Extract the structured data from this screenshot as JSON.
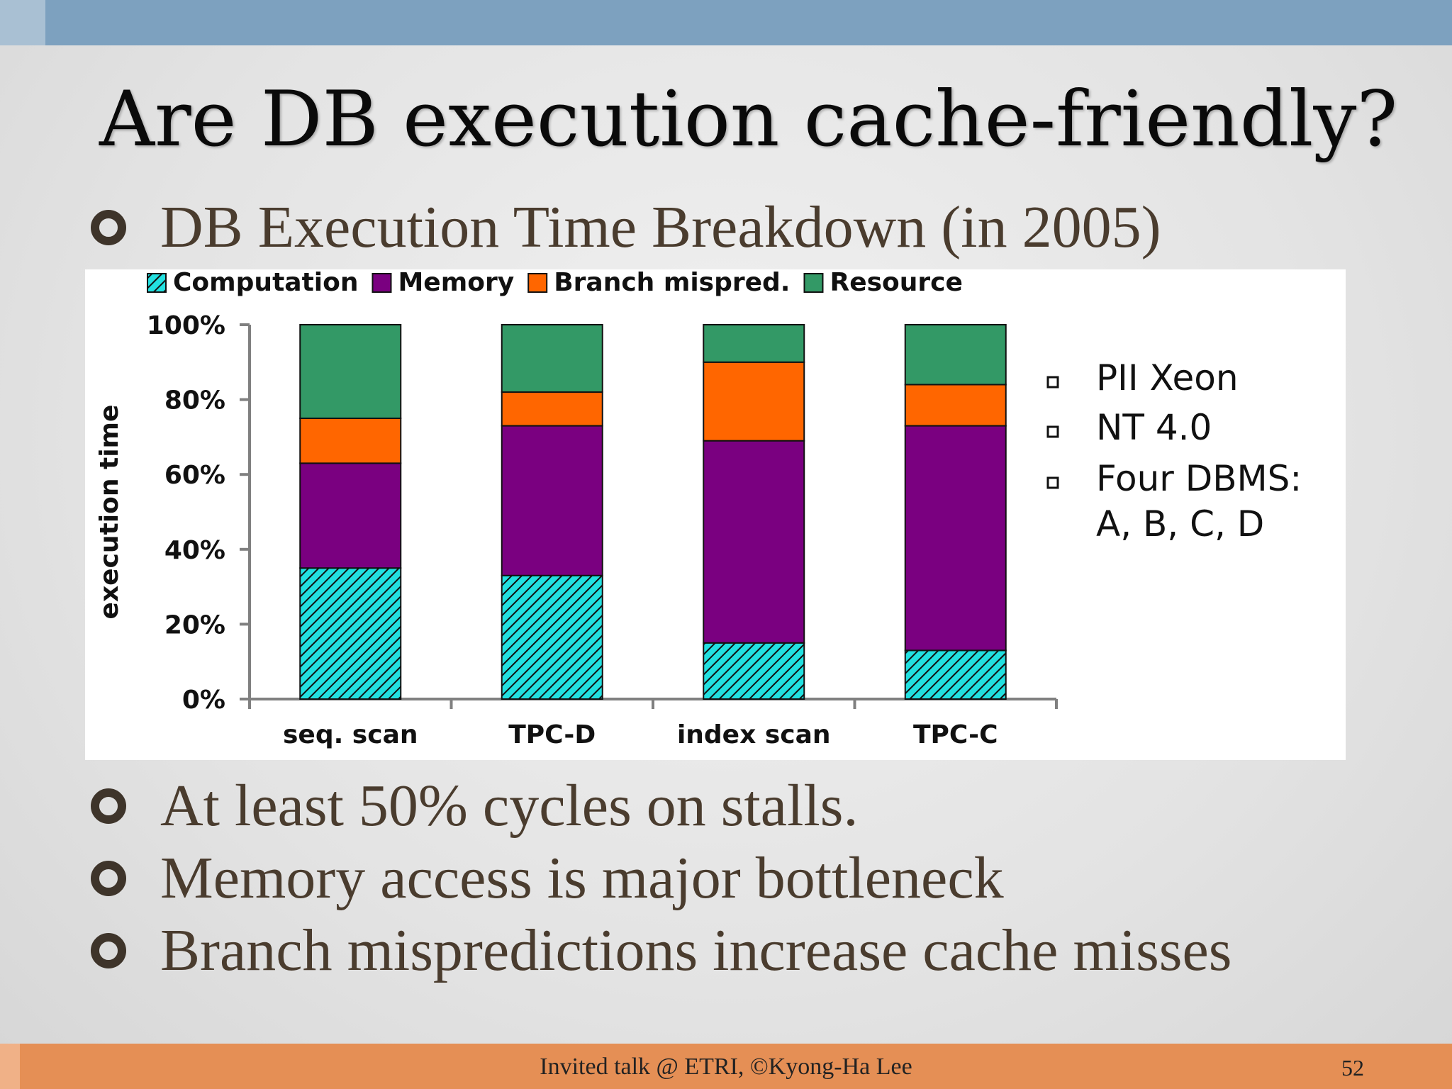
{
  "slide": {
    "title": "Are DB execution cache-friendly?",
    "bullets": [
      "DB Execution Time Breakdown (in 2005)",
      "At least 50% cycles on stalls.",
      "Memory access is major bottleneck",
      "Branch mispredictions increase cache misses"
    ],
    "footer": "Invited talk @ ETRI, ©Kyong-Ha Lee",
    "page_number": "52"
  },
  "chart_data": {
    "type": "bar",
    "stacked": true,
    "title": "",
    "xlabel": "",
    "ylabel": "execution time",
    "ylim": [
      0,
      100
    ],
    "yticks": [
      "0%",
      "20%",
      "40%",
      "60%",
      "80%",
      "100%"
    ],
    "categories": [
      "seq. scan",
      "TPC-D",
      "index scan",
      "TPC-C"
    ],
    "series": [
      {
        "name": "Computation",
        "color": "#22e0e0",
        "pattern": "hatch",
        "values": [
          35,
          33,
          15,
          13
        ]
      },
      {
        "name": "Memory",
        "color": "#7a0080",
        "values": [
          28,
          40,
          54,
          60
        ]
      },
      {
        "name": "Branch mispred.",
        "color": "#ff6600",
        "values": [
          12,
          9,
          21,
          11
        ]
      },
      {
        "name": "Resource",
        "color": "#339966",
        "values": [
          25,
          18,
          10,
          16
        ]
      }
    ],
    "legend_position": "top",
    "grid": false,
    "annotations": [
      "PII Xeon",
      "NT 4.0",
      "Four DBMS:",
      "A, B, C, D"
    ]
  }
}
